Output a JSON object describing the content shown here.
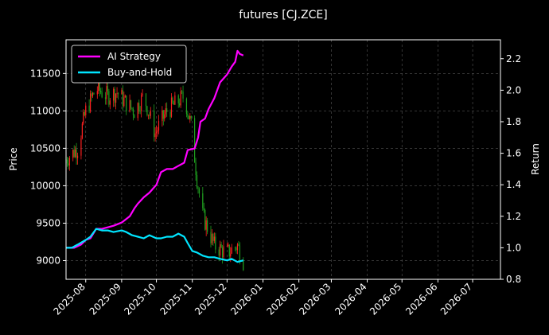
{
  "chart_data": {
    "type": "line",
    "title": "futures [CJ.ZCE]",
    "xlabel": "",
    "ylabel_left": "Price",
    "ylabel_right": "Return",
    "grid": true,
    "legend_placement": "top-left",
    "background": "#000000",
    "x_ticks": [
      "2025-08",
      "2025-09",
      "2025-10",
      "2025-11",
      "2025-12",
      "2026-01",
      "2026-02",
      "2026-03",
      "2026-04",
      "2026-05",
      "2026-06",
      "2026-07"
    ],
    "x_range": [
      "2025-07-15",
      "2026-07-25"
    ],
    "y_left": {
      "ylim": [
        8750,
        11950
      ],
      "ticks": [
        9000,
        9500,
        10000,
        10500,
        11000,
        11500
      ]
    },
    "y_right": {
      "ylim": [
        0.8,
        2.32
      ],
      "ticks": [
        0.8,
        1.0,
        1.2,
        1.4,
        1.6,
        1.8,
        2.0,
        2.2
      ],
      "tick_labels": [
        "0.8",
        "1.0",
        "1.2",
        "1.4",
        "1.6",
        "1.8",
        "2.0",
        "2.2"
      ]
    },
    "candles": {
      "up_color": "#ff2020",
      "down_color": "#1fa01f",
      "anchors": [
        [
          "2025-07-15",
          10350
        ],
        [
          "2025-07-25",
          10500
        ],
        [
          "2025-08-01",
          11000
        ],
        [
          "2025-08-10",
          11300
        ],
        [
          "2025-08-20",
          11200
        ],
        [
          "2025-08-28",
          11250
        ],
        [
          "2025-09-05",
          11100
        ],
        [
          "2025-09-12",
          11000
        ],
        [
          "2025-09-20",
          11200
        ],
        [
          "2025-09-30",
          10700
        ],
        [
          "2025-10-10",
          11000
        ],
        [
          "2025-10-18",
          11100
        ],
        [
          "2025-10-25",
          11200
        ],
        [
          "2025-10-31",
          10800
        ],
        [
          "2025-11-05",
          10100
        ],
        [
          "2025-11-10",
          9600
        ],
        [
          "2025-11-20",
          9200
        ],
        [
          "2025-12-01",
          9100
        ],
        [
          "2025-12-10",
          9200
        ],
        [
          "2025-12-15",
          9000
        ]
      ]
    },
    "series": [
      {
        "name": "AI Strategy",
        "color": "#ff00ff",
        "axis": "right",
        "points": [
          [
            "2025-07-15",
            1.0
          ],
          [
            "2025-07-22",
            1.0
          ],
          [
            "2025-07-28",
            1.02
          ],
          [
            "2025-08-01",
            1.05
          ],
          [
            "2025-08-05",
            1.06
          ],
          [
            "2025-08-10",
            1.12
          ],
          [
            "2025-08-15",
            1.12
          ],
          [
            "2025-08-20",
            1.13
          ],
          [
            "2025-08-25",
            1.14
          ],
          [
            "2025-09-01",
            1.16
          ],
          [
            "2025-09-08",
            1.2
          ],
          [
            "2025-09-12",
            1.25
          ],
          [
            "2025-09-15",
            1.28
          ],
          [
            "2025-09-20",
            1.32
          ],
          [
            "2025-09-25",
            1.35
          ],
          [
            "2025-10-01",
            1.4
          ],
          [
            "2025-10-05",
            1.48
          ],
          [
            "2025-10-10",
            1.5
          ],
          [
            "2025-10-15",
            1.5
          ],
          [
            "2025-10-20",
            1.52
          ],
          [
            "2025-10-25",
            1.54
          ],
          [
            "2025-10-28",
            1.62
          ],
          [
            "2025-11-03",
            1.63
          ],
          [
            "2025-11-06",
            1.7
          ],
          [
            "2025-11-08",
            1.8
          ],
          [
            "2025-11-12",
            1.82
          ],
          [
            "2025-11-15",
            1.88
          ],
          [
            "2025-11-20",
            1.95
          ],
          [
            "2025-11-25",
            2.05
          ],
          [
            "2025-12-01",
            2.1
          ],
          [
            "2025-12-05",
            2.15
          ],
          [
            "2025-12-08",
            2.18
          ],
          [
            "2025-12-10",
            2.25
          ],
          [
            "2025-12-12",
            2.23
          ],
          [
            "2025-12-15",
            2.22
          ]
        ]
      },
      {
        "name": "Buy-and-Hold",
        "color": "#00e5ff",
        "axis": "right",
        "points": [
          [
            "2025-07-15",
            1.0
          ],
          [
            "2025-07-20",
            1.0
          ],
          [
            "2025-07-25",
            1.02
          ],
          [
            "2025-08-01",
            1.05
          ],
          [
            "2025-08-05",
            1.07
          ],
          [
            "2025-08-10",
            1.12
          ],
          [
            "2025-08-15",
            1.11
          ],
          [
            "2025-08-20",
            1.11
          ],
          [
            "2025-08-25",
            1.1
          ],
          [
            "2025-09-01",
            1.11
          ],
          [
            "2025-09-05",
            1.1
          ],
          [
            "2025-09-10",
            1.08
          ],
          [
            "2025-09-15",
            1.07
          ],
          [
            "2025-09-20",
            1.06
          ],
          [
            "2025-09-25",
            1.08
          ],
          [
            "2025-10-01",
            1.06
          ],
          [
            "2025-10-05",
            1.06
          ],
          [
            "2025-10-10",
            1.07
          ],
          [
            "2025-10-15",
            1.07
          ],
          [
            "2025-10-20",
            1.09
          ],
          [
            "2025-10-25",
            1.07
          ],
          [
            "2025-10-28",
            1.03
          ],
          [
            "2025-11-01",
            0.98
          ],
          [
            "2025-11-05",
            0.97
          ],
          [
            "2025-11-10",
            0.95
          ],
          [
            "2025-11-15",
            0.94
          ],
          [
            "2025-11-20",
            0.94
          ],
          [
            "2025-11-25",
            0.93
          ],
          [
            "2025-12-01",
            0.92
          ],
          [
            "2025-12-05",
            0.93
          ],
          [
            "2025-12-10",
            0.91
          ],
          [
            "2025-12-15",
            0.92
          ]
        ]
      }
    ]
  }
}
